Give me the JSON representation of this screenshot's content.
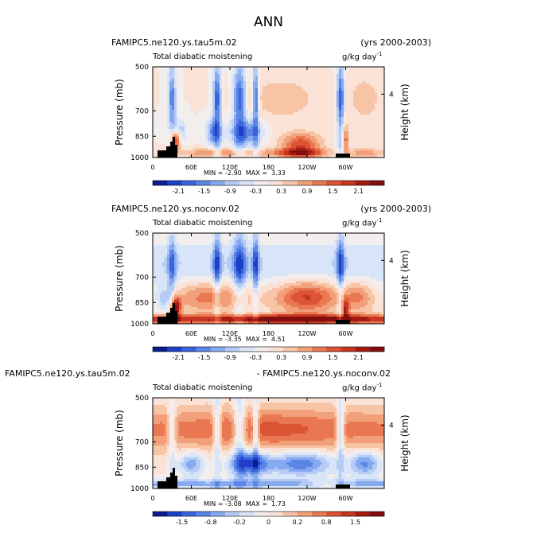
{
  "title": "ANN",
  "chart_data": [
    {
      "type": "heatmap",
      "case": "FAMIPC5.ne120.ys.tau5m.02",
      "years": "(yrs 2000-2003)",
      "subtitle": "Total diabatic moistening",
      "units": "g/kg day",
      "units_exp": "-1",
      "ylabel": "Pressure (mb)",
      "ylabel_right": "Height (km)",
      "x_ticks": [
        "0",
        "60E",
        "120E",
        "180",
        "120W",
        "60W"
      ],
      "y_ticks": [
        "500",
        "700",
        "850",
        "1000"
      ],
      "right_ticks": [
        "4"
      ],
      "xlim": [
        0,
        360
      ],
      "ylim": [
        1000,
        500
      ],
      "min": "-2.90",
      "max": "3.33",
      "colorbar_labels": [
        "-2.1",
        "-1.5",
        "-0.9",
        "-0.3",
        "0.3",
        "0.9",
        "1.5",
        "2.1"
      ],
      "colorbar_colors": [
        "#0a1c8f",
        "#1f3fc8",
        "#3b63dc",
        "#5b86e6",
        "#86aaf0",
        "#b5cbf5",
        "#d8e4f8",
        "#f3eeee",
        "#fbe2d6",
        "#f7c4a6",
        "#f2a07a",
        "#e97752",
        "#db5433",
        "#c73623",
        "#a61a14",
        "#820e0e"
      ]
    },
    {
      "type": "heatmap",
      "case": "FAMIPC5.ne120.ys.noconv.02",
      "years": "(yrs 2000-2003)",
      "subtitle": "Total diabatic moistening",
      "units": "g/kg day",
      "units_exp": "-1",
      "ylabel": "Pressure (mb)",
      "ylabel_right": "Height (km)",
      "x_ticks": [
        "0",
        "60E",
        "120E",
        "180",
        "120W",
        "60W"
      ],
      "y_ticks": [
        "500",
        "700",
        "850",
        "1000"
      ],
      "right_ticks": [
        "4"
      ],
      "xlim": [
        0,
        360
      ],
      "ylim": [
        1000,
        500
      ],
      "min": "-3.35",
      "max": "4.51",
      "colorbar_labels": [
        "-2.1",
        "-1.5",
        "-0.9",
        "-0.3",
        "0.3",
        "0.9",
        "1.5",
        "2.1"
      ],
      "colorbar_colors": [
        "#0a1c8f",
        "#1f3fc8",
        "#3b63dc",
        "#5b86e6",
        "#86aaf0",
        "#b5cbf5",
        "#d8e4f8",
        "#f3eeee",
        "#fbe2d6",
        "#f7c4a6",
        "#f2a07a",
        "#e97752",
        "#db5433",
        "#c73623",
        "#a61a14",
        "#820e0e"
      ]
    },
    {
      "type": "heatmap",
      "case": "FAMIPC5.ne120.ys.tau5m.02",
      "years": "- FAMIPC5.ne120.ys.noconv.02",
      "subtitle": "Total diabatic moistening",
      "units": "g/kg day",
      "units_exp": "-1",
      "ylabel": "Pressure (mb)",
      "ylabel_right": "Height (km)",
      "x_ticks": [
        "0",
        "60E",
        "120E",
        "180",
        "120W",
        "60W"
      ],
      "y_ticks": [
        "500",
        "700",
        "850",
        "1000"
      ],
      "right_ticks": [
        "4"
      ],
      "xlim": [
        0,
        360
      ],
      "ylim": [
        1000,
        500
      ],
      "min": "-3.08",
      "max": "1.73",
      "colorbar_labels": [
        "-1.5",
        "-0.8",
        "-0.2",
        "0",
        "0.2",
        "0.8",
        "1.5"
      ],
      "colorbar_colors": [
        "#0a1c8f",
        "#1f3fc8",
        "#3b63dc",
        "#5b86e6",
        "#86aaf0",
        "#b5cbf5",
        "#d8e4f8",
        "#f3eeee",
        "#fbe2d6",
        "#f7c4a6",
        "#f2a07a",
        "#e97752",
        "#db5433",
        "#c73623",
        "#a61a14",
        "#820e0e"
      ]
    }
  ]
}
